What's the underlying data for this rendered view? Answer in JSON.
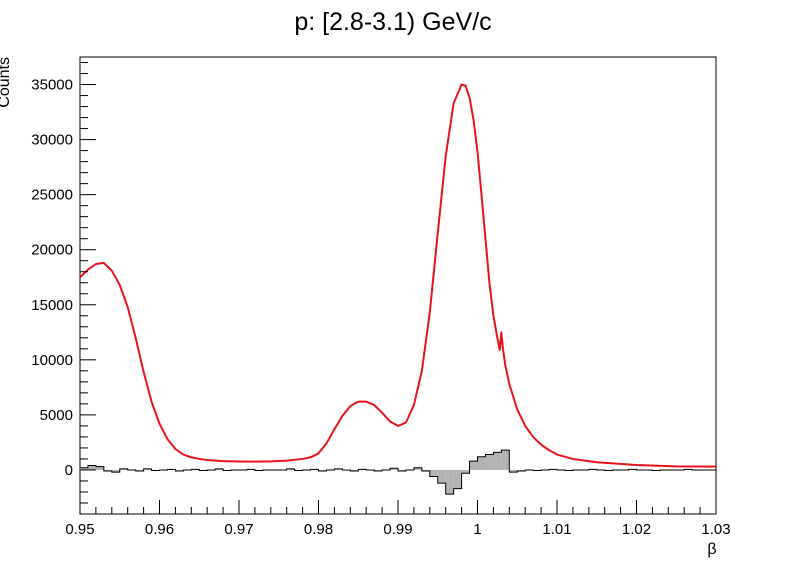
{
  "chart_data": {
    "type": "line",
    "title": "p: [2.8-3.1) GeV/c",
    "xlabel": "β",
    "ylabel": "Counts",
    "xlim": [
      0.95,
      1.03
    ],
    "ylim": [
      -4000,
      37500
    ],
    "x_ticks": [
      0.95,
      0.96,
      0.97,
      0.98,
      0.99,
      1,
      1.01,
      1.02,
      1.03
    ],
    "x_tick_labels": [
      "0.95",
      "0.96",
      "0.97",
      "0.98",
      "0.99",
      "1",
      "1.01",
      "1.02",
      "1.03"
    ],
    "y_ticks": [
      0,
      5000,
      10000,
      15000,
      20000,
      25000,
      30000,
      35000
    ],
    "y_tick_labels": [
      "0",
      "5000",
      "10000",
      "15000",
      "20000",
      "25000",
      "30000",
      "35000"
    ],
    "grid": false,
    "colors": {
      "fit": "#e8141b",
      "residual_line": "#000000",
      "residual_fill": "#b3b3b3"
    },
    "series": [
      {
        "type": "line",
        "x": [
          0.95,
          0.951,
          0.952,
          0.953,
          0.954,
          0.955,
          0.956,
          0.957,
          0.958,
          0.959,
          0.96,
          0.961,
          0.962,
          0.963,
          0.964,
          0.965,
          0.966,
          0.968,
          0.97,
          0.972,
          0.974,
          0.976,
          0.978,
          0.979,
          0.98,
          0.981,
          0.982,
          0.983,
          0.984,
          0.985,
          0.986,
          0.987,
          0.988,
          0.989,
          0.99,
          0.991,
          0.992,
          0.993,
          0.994,
          0.995,
          0.996,
          0.997,
          0.998,
          0.9985,
          0.999,
          0.9995,
          1.0,
          1.0005,
          1.001,
          1.0015,
          1.002,
          1.0025,
          1.0028,
          1.003,
          1.0032,
          1.0035,
          1.004,
          1.005,
          1.006,
          1.007,
          1.008,
          1.009,
          1.01,
          1.012,
          1.015,
          1.02,
          1.025,
          1.03
        ],
        "y": [
          17500,
          18200,
          18700,
          18800,
          18100,
          16800,
          14800,
          12000,
          8900,
          6200,
          4200,
          2800,
          1900,
          1400,
          1150,
          1000,
          900,
          800,
          770,
          760,
          780,
          850,
          1000,
          1150,
          1500,
          2400,
          3700,
          4900,
          5800,
          6200,
          6200,
          5900,
          5200,
          4400,
          4000,
          4300,
          5900,
          9000,
          14300,
          21500,
          28500,
          33300,
          35000,
          34900,
          33800,
          31800,
          28900,
          25000,
          21000,
          17000,
          14000,
          12000,
          10900,
          12500,
          11000,
          9500,
          7800,
          5500,
          4000,
          3000,
          2300,
          1800,
          1400,
          1000,
          700,
          450,
          330,
          300
        ]
      },
      {
        "type": "step",
        "fill": "#b3b3b3",
        "x": [
          0.95,
          0.951,
          0.952,
          0.953,
          0.954,
          0.955,
          0.956,
          0.957,
          0.958,
          0.959,
          0.96,
          0.961,
          0.962,
          0.963,
          0.964,
          0.965,
          0.966,
          0.967,
          0.968,
          0.969,
          0.97,
          0.971,
          0.972,
          0.973,
          0.974,
          0.975,
          0.976,
          0.977,
          0.978,
          0.979,
          0.98,
          0.981,
          0.982,
          0.983,
          0.984,
          0.985,
          0.986,
          0.987,
          0.988,
          0.989,
          0.99,
          0.991,
          0.992,
          0.993,
          0.994,
          0.995,
          0.996,
          0.997,
          0.998,
          0.999,
          1.0,
          1.001,
          1.002,
          1.003,
          1.004,
          1.005,
          1.006,
          1.007,
          1.008,
          1.009,
          1.01,
          1.011,
          1.012,
          1.013,
          1.014,
          1.015,
          1.016,
          1.017,
          1.018,
          1.019,
          1.02,
          1.021,
          1.022,
          1.023,
          1.024,
          1.025,
          1.026,
          1.027,
          1.028,
          1.029,
          1.03
        ],
        "y": [
          200,
          400,
          300,
          -100,
          -200,
          100,
          0,
          -100,
          100,
          -50,
          0,
          50,
          -100,
          0,
          50,
          -50,
          0,
          100,
          -50,
          0,
          0,
          50,
          -50,
          0,
          0,
          0,
          100,
          -50,
          0,
          50,
          -100,
          0,
          100,
          0,
          -100,
          50,
          0,
          -100,
          0,
          150,
          -100,
          0,
          200,
          -100,
          -600,
          -1200,
          -2200,
          -1700,
          -300,
          800,
          1200,
          1400,
          1600,
          1800,
          -200,
          -100,
          0,
          -50,
          0,
          50,
          0,
          -50,
          0,
          0,
          50,
          0,
          -50,
          0,
          0,
          50,
          0,
          0,
          -50,
          0,
          0,
          0,
          50,
          0,
          0,
          0,
          0
        ]
      }
    ]
  }
}
